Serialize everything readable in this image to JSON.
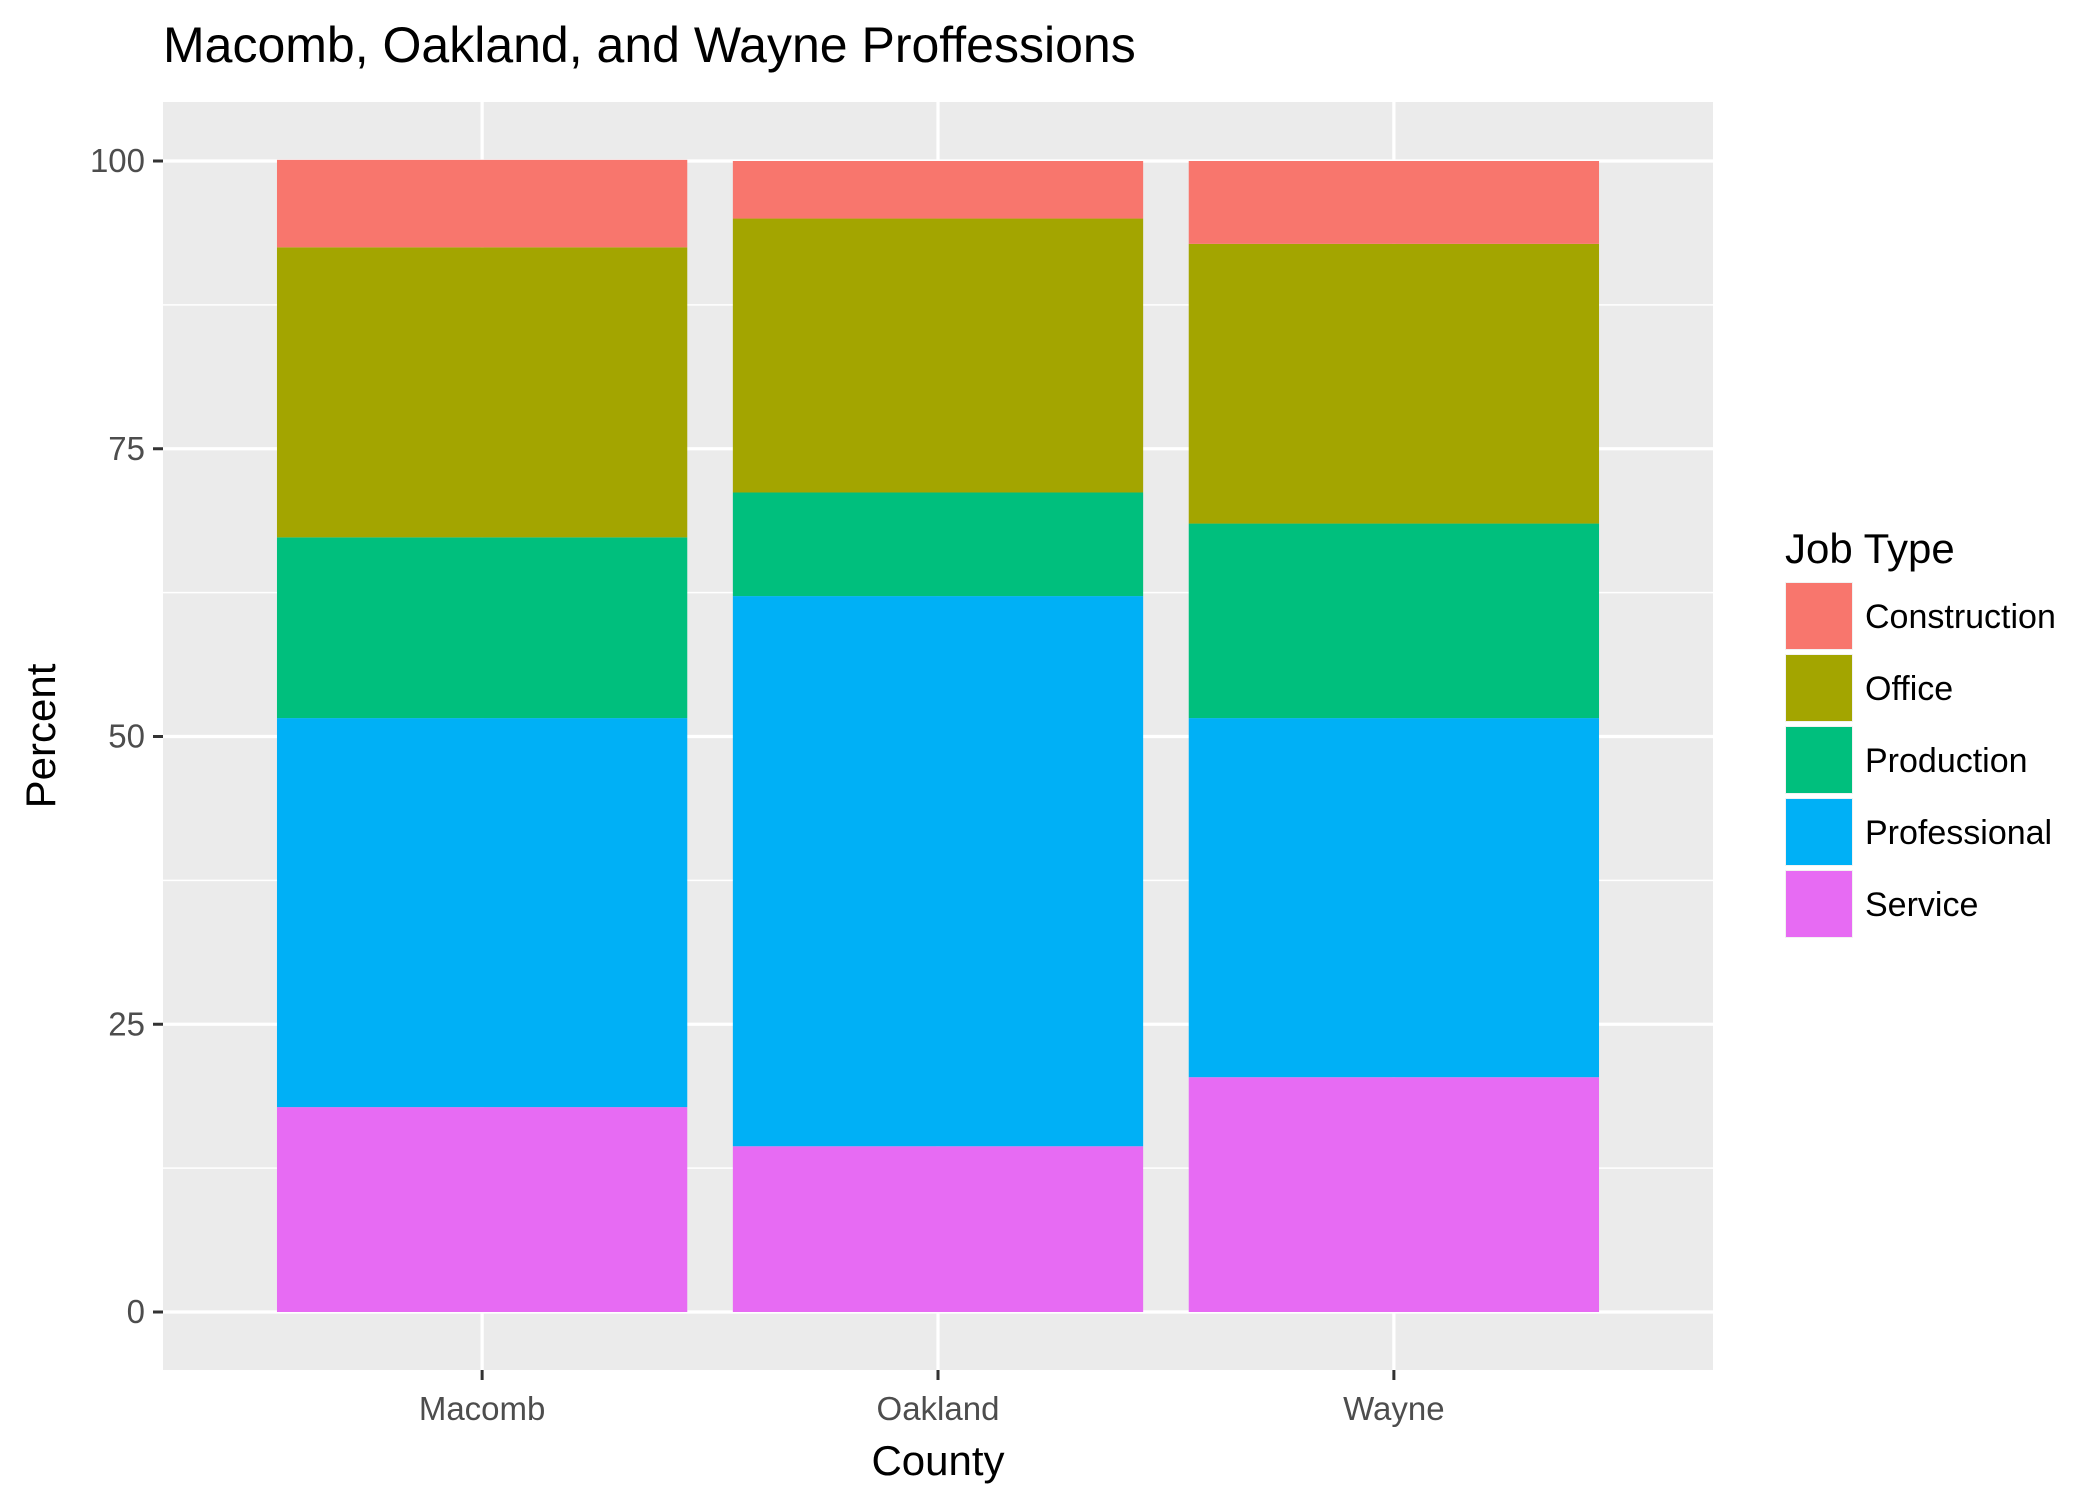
{
  "chart_data": {
    "type": "bar",
    "stacked": true,
    "title": "Macomb, Oakland, and Wayne Proffessions",
    "xlabel": "County",
    "ylabel": "Percent",
    "categories": [
      "Macomb",
      "Oakland",
      "Wayne"
    ],
    "ylim": [
      0,
      100
    ],
    "yticks": [
      "0",
      "25",
      "50",
      "75",
      "100"
    ],
    "grid": true,
    "legend_position": "right",
    "legend_title": "Job Type",
    "series": [
      {
        "name": "Construction",
        "color": "#F8766D",
        "values": [
          7.6,
          5.0,
          7.2
        ]
      },
      {
        "name": "Office",
        "color": "#A3A500",
        "values": [
          25.2,
          23.8,
          24.3
        ]
      },
      {
        "name": "Production",
        "color": "#00BF7D",
        "values": [
          15.7,
          9.0,
          16.9
        ]
      },
      {
        "name": "Professional",
        "color": "#00B0F6",
        "values": [
          33.8,
          47.8,
          31.2
        ]
      },
      {
        "name": "Service",
        "color": "#E76BF3",
        "values": [
          17.8,
          14.4,
          20.4
        ]
      }
    ]
  }
}
